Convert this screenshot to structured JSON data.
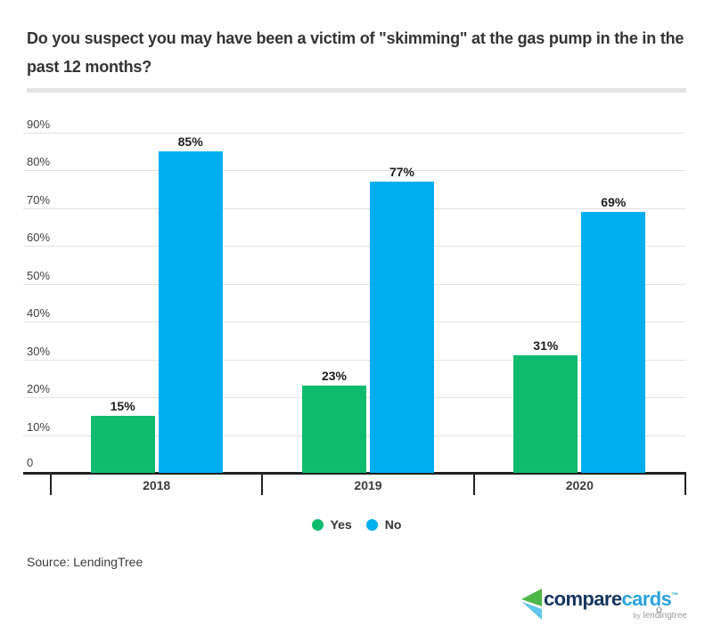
{
  "page": {
    "title_line1": "Do you suspect you may have been a victim of \"skimming\" at the gas pump in the in the",
    "title_line2": "past 12 months?",
    "source": "Source: LendingTree"
  },
  "chart_data": {
    "type": "bar",
    "title": "Do you suspect you may have been a victim of \"skimming\" at the gas pump in the in the past 12 months?",
    "categories": [
      "2018",
      "2019",
      "2020"
    ],
    "series": [
      {
        "name": "Yes",
        "color": "#0fbc6f",
        "values": [
          15,
          23,
          31
        ]
      },
      {
        "name": "No",
        "color": "#00aeef",
        "values": [
          85,
          77,
          69
        ]
      }
    ],
    "data_labels": [
      [
        "15%",
        "85%"
      ],
      [
        "23%",
        "77%"
      ],
      [
        "31%",
        "69%"
      ]
    ],
    "data_label_suffix": "%",
    "xlabel": "",
    "ylabel": "",
    "ylim": [
      0,
      90
    ],
    "ytick_step": 10,
    "ytick_labels": [
      "0",
      "10%",
      "20%",
      "30%",
      "40%",
      "50%",
      "60%",
      "70%",
      "80%",
      "90%"
    ],
    "grid": true,
    "legend_position": "bottom"
  },
  "legend": {
    "items": [
      {
        "label": "Yes",
        "color": "#0fbc6f"
      },
      {
        "label": "No",
        "color": "#00aeef"
      }
    ]
  },
  "colors": {
    "bar_yes": "#0fbc6f",
    "bar_no": "#00aeef",
    "grid_line": "#e2e2e2",
    "axis_line": "#222222",
    "divider": "#e4e4e4",
    "title_text": "#333333",
    "axis_label_text": "#404040",
    "value_label_text": "#1c1c1c",
    "category_label_text": "#3d3d3d",
    "source_text": "#3b3b3b",
    "legend_text": "#333333"
  },
  "logo": {
    "brand_part1": "compare",
    "brand_part2": "cards",
    "trademark": "™",
    "byline_by": "by",
    "byline_brand": "lendingtree",
    "colors": {
      "compare": "#14355f",
      "cards": "#2aa3dc",
      "icon_green": "#4db748",
      "icon_blue": "#62c8ea",
      "byline": "#999999"
    }
  }
}
